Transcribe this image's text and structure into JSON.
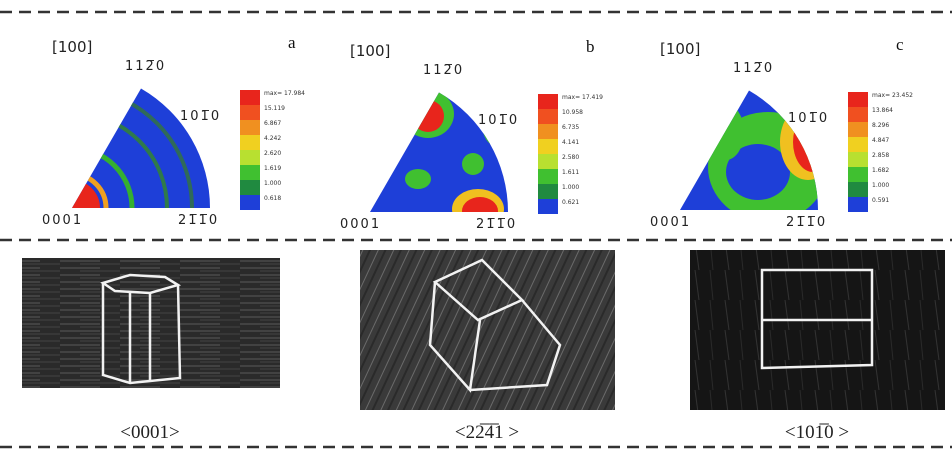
{
  "panels": [
    {
      "label": "a",
      "direction": "[100]",
      "poles": {
        "top": "112̅0",
        "right": "101̅0",
        "origin": "0001",
        "end": "21̅1̅0"
      },
      "legend": [
        "max= 17.984",
        "15.119",
        "6.867",
        "4.242",
        "2.620",
        "1.619",
        "1.000",
        "0.618"
      ],
      "caption": "<0001>"
    },
    {
      "label": "b",
      "direction": "[100]",
      "poles": {
        "top": "112̅0",
        "right": "101̅0",
        "origin": "0001",
        "end": "21̅1̅0"
      },
      "legend": [
        "max= 17.419",
        "10.958",
        "6.735",
        "4.141",
        "2.580",
        "1.611",
        "1.000",
        "0.621"
      ],
      "caption": "<22̅4̅1 >"
    },
    {
      "label": "c",
      "direction": "[100]",
      "poles": {
        "top": "112̅0",
        "right": "101̅0",
        "origin": "0001",
        "end": "21̅1̅0"
      },
      "legend": [
        "max= 23.452",
        "13.864",
        "8.296",
        "4.847",
        "2.858",
        "1.682",
        "1.000",
        "0.591"
      ],
      "caption": "<101̅0 >"
    }
  ]
}
